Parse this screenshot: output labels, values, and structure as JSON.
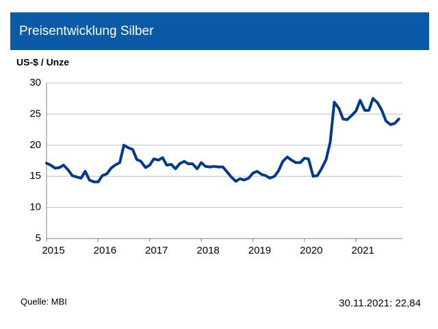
{
  "chart_data": {
    "type": "line",
    "title": "Preisentwicklung Silber",
    "ylabel": "US-$ / Unze",
    "source": "Quelle: MBI",
    "note": "30.11.2021: 22,84",
    "color": "#003a8c",
    "grid": true,
    "xlim": [
      2015,
      2021.9
    ],
    "ylim": [
      5,
      30
    ],
    "xticks": [
      2015,
      2016,
      2017,
      2018,
      2019,
      2020,
      2021
    ],
    "yticks": [
      5,
      10,
      15,
      20,
      25,
      30
    ],
    "x": [
      2015,
      2015.08,
      2015.17,
      2015.25,
      2015.33,
      2015.42,
      2015.5,
      2015.58,
      2015.67,
      2015.75,
      2015.83,
      2015.92,
      2016,
      2016.08,
      2016.17,
      2016.25,
      2016.33,
      2016.42,
      2016.5,
      2016.58,
      2016.67,
      2016.75,
      2016.83,
      2016.92,
      2017,
      2017.08,
      2017.17,
      2017.25,
      2017.33,
      2017.42,
      2017.5,
      2017.58,
      2017.67,
      2017.75,
      2017.83,
      2017.92,
      2018,
      2018.08,
      2018.17,
      2018.25,
      2018.33,
      2018.42,
      2018.5,
      2018.58,
      2018.67,
      2018.75,
      2018.83,
      2018.92,
      2019,
      2019.08,
      2019.17,
      2019.25,
      2019.33,
      2019.42,
      2019.5,
      2019.58,
      2019.67,
      2019.75,
      2019.83,
      2019.92,
      2020,
      2020.08,
      2020.17,
      2020.25,
      2020.33,
      2020.42,
      2020.5,
      2020.58,
      2020.67,
      2020.75,
      2020.83,
      2020.92,
      2021,
      2021.08,
      2021.17,
      2021.25,
      2021.33,
      2021.42,
      2021.5,
      2021.58,
      2021.67,
      2021.75,
      2021.83
    ],
    "values": [
      17.1,
      16.8,
      16.3,
      16.4,
      16.8,
      16.0,
      15.1,
      14.9,
      14.7,
      15.8,
      14.4,
      14.1,
      14.1,
      15.1,
      15.4,
      16.3,
      16.8,
      17.2,
      20.0,
      19.6,
      19.3,
      17.7,
      17.4,
      16.4,
      16.8,
      17.8,
      17.6,
      18.0,
      16.8,
      16.9,
      16.2,
      17.0,
      17.4,
      17.0,
      17.0,
      16.2,
      17.2,
      16.6,
      16.5,
      16.6,
      16.5,
      16.5,
      15.7,
      14.9,
      14.2,
      14.6,
      14.4,
      14.7,
      15.5,
      15.8,
      15.3,
      15.1,
      14.7,
      15.0,
      15.9,
      17.4,
      18.1,
      17.6,
      17.2,
      17.2,
      17.9,
      17.8,
      15.0,
      15.1,
      16.2,
      17.7,
      20.5,
      26.9,
      25.9,
      24.2,
      24.1,
      24.8,
      25.5,
      27.2,
      25.6,
      25.6,
      27.5,
      26.8,
      25.6,
      23.9,
      23.3,
      23.5,
      24.2
    ]
  }
}
